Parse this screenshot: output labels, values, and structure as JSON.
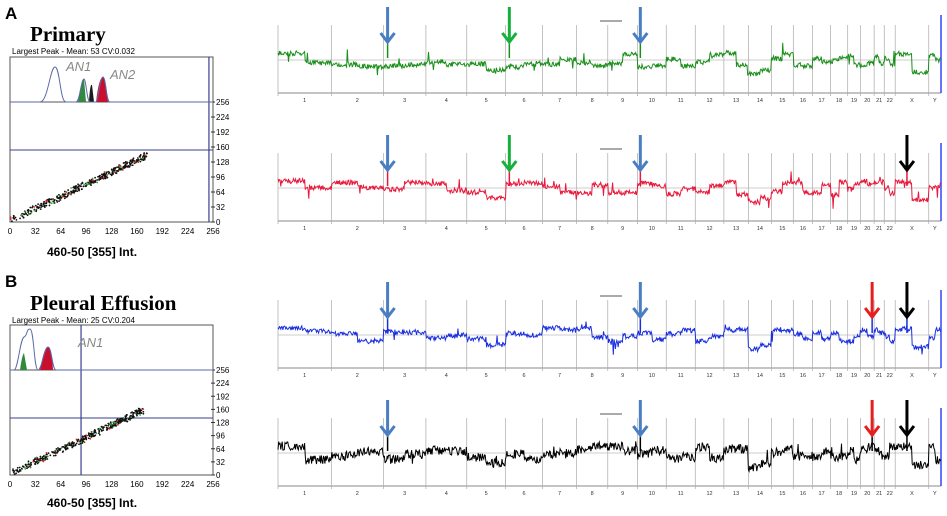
{
  "panels": [
    {
      "letter": "A",
      "title": "Primary",
      "flow": {
        "peak_text": "Largest Peak - Mean:  53  CV:0.032",
        "annotations": [
          "AN1",
          "AN2"
        ],
        "xaxis_label": "460-50 [355] Int.",
        "tick_labels": [
          "0",
          "32",
          "64",
          "96",
          "128",
          "160",
          "192",
          "224",
          "256"
        ],
        "gate_fraction": 0.98
      },
      "tracks": [
        {
          "color": "#1a8f1a",
          "arrows": [
            {
              "chrom": "3",
              "color": "#4a7ec2"
            },
            {
              "chrom": "6",
              "color": "#17b03c"
            },
            {
              "chrom": "10",
              "color": "#4a7ec2"
            }
          ]
        },
        {
          "color": "#e8193c",
          "arrows": [
            {
              "chrom": "3",
              "color": "#4a7ec2"
            },
            {
              "chrom": "6",
              "color": "#17b03c"
            },
            {
              "chrom": "10",
              "color": "#4a7ec2"
            },
            {
              "chrom": "X",
              "color": "#000000"
            }
          ]
        }
      ]
    },
    {
      "letter": "B",
      "title": "Pleural Effusion",
      "flow": {
        "peak_text": "Largest Peak - Mean:  25  CV:0.204",
        "annotations": [
          "AN1"
        ],
        "xaxis_label": "460-50 [355] Int.",
        "tick_labels": [
          "0",
          "32",
          "64",
          "96",
          "128",
          "160",
          "192",
          "224",
          "256"
        ],
        "gate_fraction": 0.35
      },
      "tracks": [
        {
          "color": "#1a2fe0",
          "arrows": [
            {
              "chrom": "3",
              "color": "#4a7ec2"
            },
            {
              "chrom": "10",
              "color": "#4a7ec2"
            },
            {
              "chrom": "21",
              "color": "#e61e1e"
            },
            {
              "chrom": "X",
              "color": "#000000"
            }
          ]
        },
        {
          "color": "#000000",
          "arrows": [
            {
              "chrom": "3",
              "color": "#4a7ec2"
            },
            {
              "chrom": "10",
              "color": "#4a7ec2"
            },
            {
              "chrom": "21",
              "color": "#e61e1e"
            },
            {
              "chrom": "X",
              "color": "#000000"
            }
          ]
        }
      ]
    }
  ],
  "chromosome_labels": [
    "1",
    "2",
    "3",
    "4",
    "5",
    "6",
    "7",
    "8",
    "9",
    "10",
    "11",
    "12",
    "13",
    "14",
    "15",
    "16",
    "17",
    "18",
    "19",
    "20",
    "21",
    "22",
    "X",
    "Y"
  ]
}
